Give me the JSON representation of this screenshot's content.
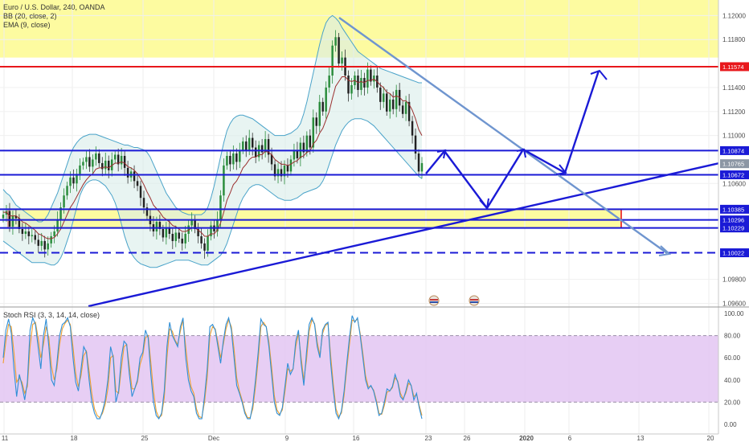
{
  "header": {
    "symbol_line": "Euro / U.S. Dollar, 240, OANDA",
    "bb_line": "BB (20, close, 2)",
    "ema_line": "EMA (9, close)"
  },
  "rsi": {
    "title": "Stoch RSI (3, 3, 14, 14, close)",
    "ticks": [
      "100.00",
      "80.00",
      "60.00",
      "40.00",
      "20.00",
      "0.00"
    ],
    "tick_values": [
      100,
      80,
      60,
      40,
      20,
      0
    ],
    "band_upper": 80,
    "band_lower": 20,
    "band_color": "#e3c6f2",
    "k_color": "#2f8fd6",
    "d_color": "#f0a030",
    "k": [
      60,
      85,
      95,
      82,
      50,
      25,
      45,
      35,
      22,
      38,
      85,
      96,
      90,
      70,
      50,
      80,
      95,
      70,
      40,
      35,
      55,
      80,
      90,
      92,
      96,
      88,
      60,
      38,
      30,
      50,
      70,
      65,
      40,
      20,
      10,
      5,
      5,
      12,
      22,
      40,
      70,
      60,
      20,
      30,
      60,
      75,
      72,
      45,
      25,
      32,
      40,
      60,
      65,
      85,
      78,
      45,
      20,
      8,
      5,
      10,
      30,
      70,
      92,
      80,
      75,
      70,
      88,
      96,
      60,
      40,
      30,
      25,
      10,
      5,
      5,
      25,
      50,
      88,
      90,
      85,
      70,
      55,
      75,
      90,
      96,
      85,
      60,
      35,
      28,
      20,
      10,
      5,
      5,
      18,
      40,
      65,
      95,
      90,
      88,
      70,
      45,
      20,
      10,
      8,
      15,
      35,
      55,
      45,
      50,
      75,
      85,
      55,
      35,
      65,
      90,
      96,
      90,
      70,
      60,
      85,
      90,
      92,
      55,
      30,
      10,
      5,
      12,
      30,
      55,
      78,
      98,
      92,
      96,
      80,
      60,
      40,
      32,
      35,
      30,
      20,
      8,
      10,
      20,
      32,
      30,
      34,
      45,
      38,
      25,
      22,
      30,
      40,
      35,
      22,
      28,
      15,
      5
    ],
    "d": [
      55,
      75,
      90,
      88,
      65,
      38,
      42,
      38,
      28,
      34,
      70,
      90,
      92,
      78,
      60,
      72,
      88,
      78,
      52,
      40,
      50,
      72,
      86,
      91,
      94,
      90,
      70,
      46,
      34,
      44,
      62,
      66,
      48,
      28,
      14,
      8,
      6,
      10,
      18,
      32,
      60,
      62,
      30,
      28,
      50,
      70,
      72,
      52,
      32,
      32,
      38,
      54,
      62,
      78,
      80,
      56,
      30,
      12,
      6,
      8,
      24,
      60,
      86,
      84,
      76,
      72,
      84,
      94,
      70,
      48,
      34,
      28,
      14,
      7,
      6,
      20,
      42,
      80,
      88,
      86,
      74,
      60,
      72,
      86,
      94,
      88,
      68,
      42,
      30,
      22,
      12,
      6,
      6,
      14,
      34,
      58,
      88,
      92,
      88,
      74,
      52,
      26,
      13,
      9,
      13,
      30,
      50,
      48,
      50,
      70,
      82,
      60,
      40,
      58,
      84,
      94,
      91,
      74,
      62,
      82,
      89,
      91,
      62,
      36,
      14,
      7,
      10,
      26,
      50,
      72,
      94,
      93,
      95,
      82,
      64,
      44,
      34,
      34,
      31,
      22,
      10,
      9,
      17,
      29,
      30,
      33,
      42,
      39,
      28,
      23,
      28,
      37,
      35,
      25,
      27,
      17,
      8
    ]
  },
  "x_axis": {
    "labels": [
      "11",
      "18",
      "25",
      "Dec",
      "9",
      "16",
      "23",
      "26",
      "2020",
      "6",
      "13",
      "20"
    ]
  },
  "price_axis": {
    "ticks": [
      "1.12000",
      "1.11800",
      "1.11400",
      "1.11200",
      "1.11000",
      "1.10600",
      "1.09800",
      "1.09600"
    ],
    "tick_values": [
      1.12,
      1.118,
      1.114,
      1.112,
      1.11,
      1.106,
      1.098,
      1.096
    ],
    "min": 1.0957,
    "max": 1.1213
  },
  "levels": [
    {
      "label": "1.11574",
      "value": 1.11574,
      "color": "#e8171b",
      "style": "solid"
    },
    {
      "label": "1.10874",
      "value": 1.10874,
      "color": "#1a1ad6",
      "style": "solid"
    },
    {
      "label": "1.10765",
      "value": 1.10765,
      "color": "#8c96a4",
      "style": "none"
    },
    {
      "label": "1.10672",
      "value": 1.10672,
      "color": "#1a1ad6",
      "style": "solid"
    },
    {
      "label": "1.10385",
      "value": 1.10385,
      "color": "#1a1ad6",
      "style": "solid"
    },
    {
      "label": "1.10296",
      "value": 1.10296,
      "color": "#1a1ad6",
      "style": "solid"
    },
    {
      "label": "1.10229",
      "value": 1.10229,
      "color": "#1a1ad6",
      "style": "solid"
    },
    {
      "label": "1.10022",
      "value": 1.10022,
      "color": "#1a1ad6",
      "style": "dashed"
    }
  ],
  "zones": {
    "top_zone": {
      "from": 1.1165,
      "to": 1.1213,
      "color": "#fdfba0"
    },
    "support_zone": {
      "from": 1.10229,
      "to": 1.10385,
      "color": "#fdfba0",
      "border": "#e8171b"
    }
  },
  "chart_data": {
    "type": "candlestick",
    "symbol": "Euro / U.S. Dollar, 240, OANDA",
    "y_range": [
      1.0957,
      1.1213
    ],
    "closes": [
      1.1034,
      1.1037,
      1.1024,
      1.1033,
      1.1031,
      1.1022,
      1.1018,
      1.102,
      1.1016,
      1.1017,
      1.1013,
      1.1008,
      1.1012,
      1.1005,
      1.101,
      1.1016,
      1.102,
      1.103,
      1.104,
      1.105,
      1.1058,
      1.1065,
      1.106,
      1.1068,
      1.1075,
      1.1078,
      1.1082,
      1.1074,
      1.108,
      1.1085,
      1.1077,
      1.1072,
      1.1079,
      1.1071,
      1.108,
      1.1084,
      1.1076,
      1.1083,
      1.1073,
      1.1065,
      1.107,
      1.1062,
      1.1058,
      1.1048,
      1.104,
      1.1033,
      1.1026,
      1.102,
      1.1028,
      1.1022,
      1.1015,
      1.1023,
      1.1018,
      1.1012,
      1.1019,
      1.1014,
      1.101,
      1.1018,
      1.1025,
      1.103,
      1.1022,
      1.1016,
      1.101,
      1.1004,
      1.1016,
      1.1025,
      1.102,
      1.103,
      1.105,
      1.1075,
      1.1083,
      1.1076,
      1.1085,
      1.1078,
      1.1088,
      1.1095,
      1.1088,
      1.1098,
      1.109,
      1.1082,
      1.1092,
      1.1086,
      1.1097,
      1.1084,
      1.1076,
      1.1066,
      1.1072,
      1.1066,
      1.1075,
      1.107,
      1.108,
      1.1088,
      1.1081,
      1.1094,
      1.1086,
      1.11,
      1.109,
      1.1115,
      1.1108,
      1.1128,
      1.112,
      1.114,
      1.115,
      1.1175,
      1.1182,
      1.116,
      1.1165,
      1.115,
      1.1135,
      1.1142,
      1.115,
      1.1138,
      1.1148,
      1.114,
      1.1155,
      1.1145,
      1.115,
      1.114,
      1.1128,
      1.1135,
      1.112,
      1.113,
      1.1122,
      1.1138,
      1.1125,
      1.1118,
      1.1128,
      1.1112,
      1.11,
      1.1085,
      1.107,
      1.1077
    ],
    "bb_upper": [
      1.1055,
      1.1052,
      1.105,
      1.1046,
      1.1042,
      1.104,
      1.1038,
      1.1036,
      1.1034,
      1.1032,
      1.103,
      1.1028,
      1.1028,
      1.103,
      1.1034,
      1.104,
      1.1046,
      1.1052,
      1.106,
      1.1068,
      1.1076,
      1.1084,
      1.109,
      1.1094,
      1.1097,
      1.1099,
      1.11,
      1.1101,
      1.1101,
      1.1101,
      1.11,
      1.1099,
      1.1098,
      1.1097,
      1.1096,
      1.1095,
      1.1094,
      1.1093,
      1.1092,
      1.1092,
      1.1091,
      1.109,
      1.109,
      1.1089,
      1.1088,
      1.1086,
      1.1082,
      1.1076,
      1.107,
      1.1064,
      1.1058,
      1.1052,
      1.1048,
      1.1044,
      1.104,
      1.1038,
      1.1036,
      1.1035,
      1.1034,
      1.1034,
      1.1034,
      1.1034,
      1.1034,
      1.1036,
      1.104,
      1.1048,
      1.1058,
      1.107,
      1.1082,
      1.1094,
      1.1104,
      1.111,
      1.1114,
      1.1116,
      1.1117,
      1.1117,
      1.1116,
      1.1115,
      1.1114,
      1.1112,
      1.111,
      1.1108,
      1.1106,
      1.1104,
      1.1102,
      1.11,
      1.11,
      1.11,
      1.11,
      1.1101,
      1.1102,
      1.1104,
      1.1106,
      1.111,
      1.1118,
      1.1128,
      1.114,
      1.1152,
      1.1164,
      1.1176,
      1.1186,
      1.1194,
      1.1198,
      1.12,
      1.1198,
      1.1195,
      1.119,
      1.1186,
      1.1182,
      1.1178,
      1.1174,
      1.117,
      1.1168,
      1.1166,
      1.1164,
      1.1162,
      1.116,
      1.1158,
      1.1156,
      1.1155,
      1.1154,
      1.1153,
      1.1152,
      1.1151,
      1.115,
      1.1149,
      1.1148,
      1.1147,
      1.1146,
      1.1145,
      1.1144,
      1.1144
    ],
    "bb_lower": [
      1.1012,
      1.101,
      1.1008,
      1.1006,
      1.1004,
      1.1002,
      1.1,
      1.0998,
      1.0996,
      1.0994,
      1.0994,
      1.0994,
      1.0994,
      1.0994,
      1.0993,
      1.0992,
      1.0992,
      1.0994,
      1.0998,
      1.1004,
      1.1012,
      1.102,
      1.103,
      1.104,
      1.105,
      1.1056,
      1.106,
      1.1062,
      1.1063,
      1.1063,
      1.1062,
      1.106,
      1.1058,
      1.1054,
      1.105,
      1.1044,
      1.1036,
      1.1026,
      1.1016,
      1.1008,
      1.1002,
      1.0998,
      1.0995,
      1.0993,
      1.0992,
      1.0991,
      1.099,
      1.099,
      1.099,
      1.0991,
      1.0992,
      1.0993,
      1.0994,
      1.0995,
      1.0996,
      1.0996,
      1.0996,
      1.0996,
      1.0996,
      1.0995,
      1.0994,
      1.0993,
      1.0992,
      1.0992,
      1.0992,
      1.0994,
      1.0996,
      1.0998,
      1.1,
      1.1004,
      1.101,
      1.1018,
      1.1026,
      1.1034,
      1.1042,
      1.1048,
      1.1052,
      1.1056,
      1.1058,
      1.1059,
      1.1059,
      1.1058,
      1.1056,
      1.1054,
      1.1052,
      1.105,
      1.1048,
      1.1047,
      1.1046,
      1.1046,
      1.1046,
      1.1047,
      1.1048,
      1.105,
      1.1052,
      1.1053,
      1.1054,
      1.1055,
      1.1056,
      1.1058,
      1.1062,
      1.1068,
      1.1076,
      1.1084,
      1.1092,
      1.1098,
      1.1104,
      1.1108,
      1.1111,
      1.1113,
      1.1114,
      1.1114,
      1.1114,
      1.1113,
      1.1112,
      1.111,
      1.1108,
      1.1105,
      1.1102,
      1.1099,
      1.1096,
      1.1093,
      1.109,
      1.1087,
      1.1084,
      1.1081,
      1.1078,
      1.1075,
      1.1072,
      1.1069,
      1.1066,
      1.1064
    ],
    "ema": [
      1.1036,
      1.1036,
      1.1033,
      1.1033,
      1.1033,
      1.1031,
      1.1028,
      1.1027,
      1.1025,
      1.1023,
      1.1021,
      1.1018,
      1.1017,
      1.1015,
      1.1014,
      1.1014,
      1.1015,
      1.1018,
      1.1022,
      1.1028,
      1.1034,
      1.104,
      1.1044,
      1.1049,
      1.1054,
      1.1059,
      1.1063,
      1.1066,
      1.1068,
      1.1072,
      1.1073,
      1.1073,
      1.1074,
      1.1073,
      1.1075,
      1.1077,
      1.1077,
      1.1078,
      1.1077,
      1.1074,
      1.1073,
      1.1071,
      1.1068,
      1.1064,
      1.1059,
      1.1053,
      1.1048,
      1.1042,
      1.1039,
      1.1036,
      1.1032,
      1.103,
      1.1028,
      1.1025,
      1.1024,
      1.1022,
      1.102,
      1.102,
      1.1021,
      1.1023,
      1.1023,
      1.1021,
      1.1019,
      1.1016,
      1.1016,
      1.1018,
      1.1018,
      1.1021,
      1.1027,
      1.1036,
      1.1046,
      1.1052,
      1.1059,
      1.1062,
      1.1067,
      1.1073,
      1.1076,
      1.108,
      1.1082,
      1.1082,
      1.1084,
      1.1084,
      1.1087,
      1.1086,
      1.1084,
      1.108,
      1.1078,
      1.1076,
      1.1076,
      1.1075,
      1.1076,
      1.1078,
      1.1079,
      1.1082,
      1.1083,
      1.1086,
      1.1087,
      1.1093,
      1.1096,
      1.1102,
      1.1106,
      1.1113,
      1.112,
      1.1131,
      1.1141,
      1.1145,
      1.1149,
      1.1149,
      1.1146,
      1.1145,
      1.1146,
      1.1144,
      1.1145,
      1.1144,
      1.1146,
      1.1146,
      1.1147,
      1.1145,
      1.1142,
      1.114,
      1.1136,
      1.1135,
      1.1132,
      1.1133,
      1.1132,
      1.1129,
      1.1129,
      1.1126,
      1.1121,
      1.1114,
      1.1105,
      1.11
    ]
  }
}
